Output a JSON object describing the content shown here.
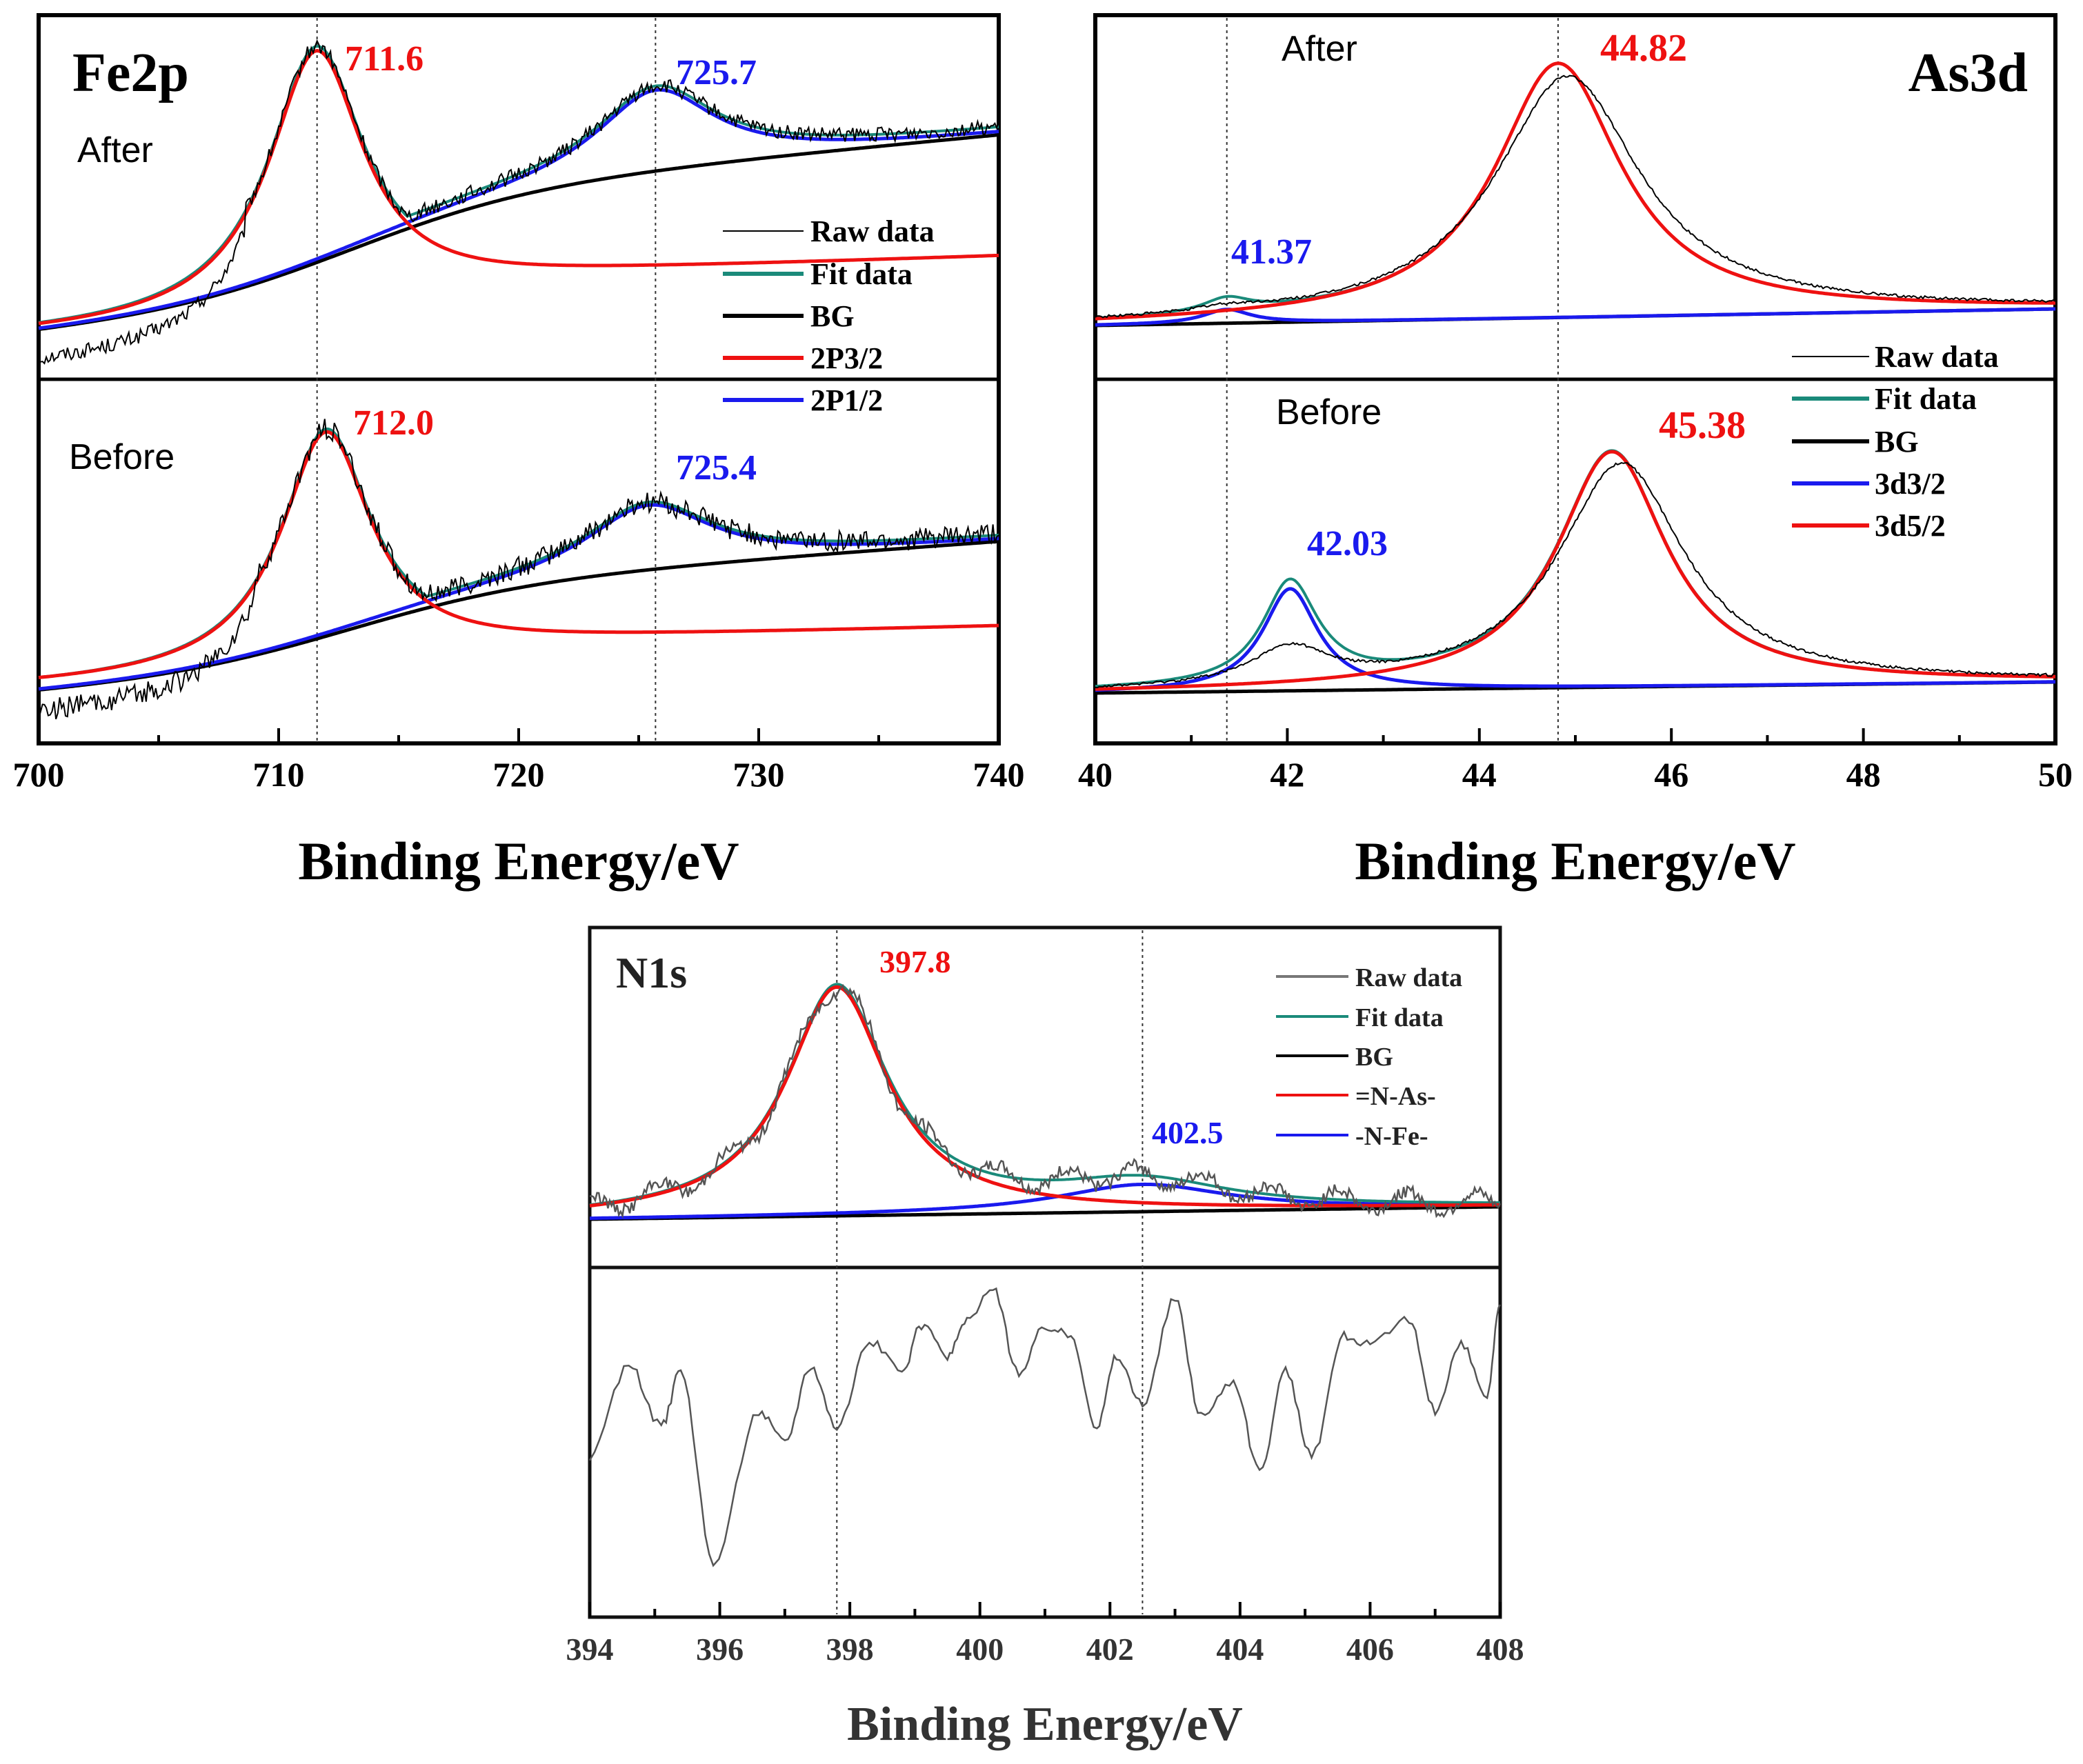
{
  "colors": {
    "raw": "#000000",
    "raw_n1s": "#555555",
    "fit": "#1a8a7a",
    "bg": "#000000",
    "red": "#ee1111",
    "blue": "#1a1aee",
    "frame": "#000000"
  },
  "chart_data": [
    {
      "id": "fe2p",
      "type": "line",
      "title": "Fe2p",
      "xlabel": "Binding Energy/eV",
      "xlim": [
        700,
        740
      ],
      "xticks": [
        700,
        710,
        720,
        730,
        740
      ],
      "xtick_labels": [
        "700",
        "710",
        "720",
        "730",
        "740"
      ],
      "reference_lines": [
        711.6,
        725.7
      ],
      "legend": [
        "Raw data",
        "Fit data",
        "BG",
        "2P3/2",
        "2P1/2"
      ],
      "panels": [
        {
          "label": "After",
          "peak_labels": [
            {
              "text": "711.6",
              "x": 711.6,
              "color": "red"
            },
            {
              "text": "725.7",
              "x": 725.7,
              "color": "blue"
            }
          ],
          "series": {
            "bg": {
              "start": 0.05,
              "end": 0.72,
              "center": 713,
              "width": 4
            },
            "peak1": {
              "center": 711.6,
              "height": 0.95,
              "width": 2.4
            },
            "peak2": {
              "center": 725.7,
              "height": 0.78,
              "width": 3.0
            }
          }
        },
        {
          "label": "Before",
          "peak_labels": [
            {
              "text": "712.0",
              "x": 712.0,
              "color": "red"
            },
            {
              "text": "725.4",
              "x": 725.4,
              "color": "blue"
            }
          ],
          "series": {
            "bg": {
              "start": 0.0,
              "end": 0.55,
              "center": 713,
              "width": 4
            },
            "peak1": {
              "center": 712.0,
              "height": 0.9,
              "width": 2.3
            },
            "peak2": {
              "center": 725.4,
              "height": 0.67,
              "width": 3.2
            }
          }
        }
      ]
    },
    {
      "id": "as3d",
      "type": "line",
      "title": "As3d",
      "xlabel": "Binding Energy/eV",
      "xlim": [
        40,
        50
      ],
      "xticks": [
        40,
        42,
        44,
        46,
        48,
        50
      ],
      "xtick_labels": [
        "40",
        "42",
        "44",
        "46",
        "48",
        "50"
      ],
      "reference_lines": [
        41.37,
        44.82
      ],
      "legend": [
        "Raw data",
        "Fit data",
        "BG",
        "3d3/2",
        "3d5/2"
      ],
      "panels": [
        {
          "label": "After",
          "peak_labels": [
            {
              "text": "44.82",
              "x": 44.82,
              "color": "red"
            },
            {
              "text": "41.37",
              "x": 41.37,
              "color": "blue"
            }
          ],
          "series": {
            "bg": {
              "start": 0.0,
              "end": 0.06
            },
            "peak_red": {
              "center": 44.82,
              "height": 0.95,
              "width": 0.8
            },
            "peak_blue": {
              "center": 41.37,
              "height": 0.05,
              "width": 0.3
            }
          }
        },
        {
          "label": "Before",
          "peak_labels": [
            {
              "text": "45.38",
              "x": 45.38,
              "color": "red"
            },
            {
              "text": "42.03",
              "x": 42.03,
              "color": "blue"
            }
          ],
          "series": {
            "bg": {
              "start": 0.0,
              "end": 0.04
            },
            "peak_red": {
              "center": 45.38,
              "height": 0.88,
              "width": 0.7
            },
            "peak_blue": {
              "center": 42.03,
              "height": 0.37,
              "width": 0.35
            }
          }
        }
      ]
    },
    {
      "id": "n1s",
      "type": "line",
      "title": "N1s",
      "xlabel": "Binding Energy/eV",
      "xlim": [
        394,
        408
      ],
      "xticks": [
        394,
        396,
        398,
        400,
        402,
        404,
        406,
        408
      ],
      "xtick_labels": [
        "394",
        "396",
        "398",
        "400",
        "402",
        "404",
        "406",
        "408"
      ],
      "reference_lines": [
        397.8,
        402.5
      ],
      "legend": [
        "Raw data",
        "Fit data",
        "BG",
        "=N-As-",
        "-N-Fe-"
      ],
      "panels": [
        {
          "label": "",
          "peak_labels": [
            {
              "text": "397.8",
              "x": 397.8,
              "color": "red"
            },
            {
              "text": "402.5",
              "x": 402.5,
              "color": "blue"
            }
          ],
          "series": {
            "bg": {
              "start": 0.0,
              "end": 0.05
            },
            "peak_red": {
              "center": 397.8,
              "height": 0.95,
              "width": 0.95
            },
            "peak_blue": {
              "center": 402.5,
              "height": 0.11,
              "width": 1.6
            }
          }
        },
        {
          "label": "",
          "peak_labels": [],
          "series": {
            "noise_x": [
              394.0,
              394.6,
              395.1,
              395.4,
              395.9,
              396.6,
              397.0,
              397.4,
              397.8,
              398.3,
              398.8,
              399.1,
              399.5,
              399.8,
              400.2,
              400.6,
              401.0,
              401.4,
              401.8,
              402.1,
              402.5,
              403.0,
              403.4,
              403.9,
              404.3,
              404.7,
              405.1,
              405.6,
              406.0,
              406.6,
              407.0,
              407.4,
              407.8,
              408.0
            ],
            "noise_y": [
              0.45,
              0.75,
              0.55,
              0.73,
              0.1,
              0.6,
              0.5,
              0.75,
              0.55,
              0.83,
              0.73,
              0.88,
              0.78,
              0.9,
              1.0,
              0.72,
              0.88,
              0.85,
              0.55,
              0.78,
              0.62,
              0.97,
              0.58,
              0.7,
              0.4,
              0.73,
              0.45,
              0.85,
              0.82,
              0.9,
              0.6,
              0.82,
              0.65,
              0.95
            ]
          }
        }
      ]
    }
  ]
}
